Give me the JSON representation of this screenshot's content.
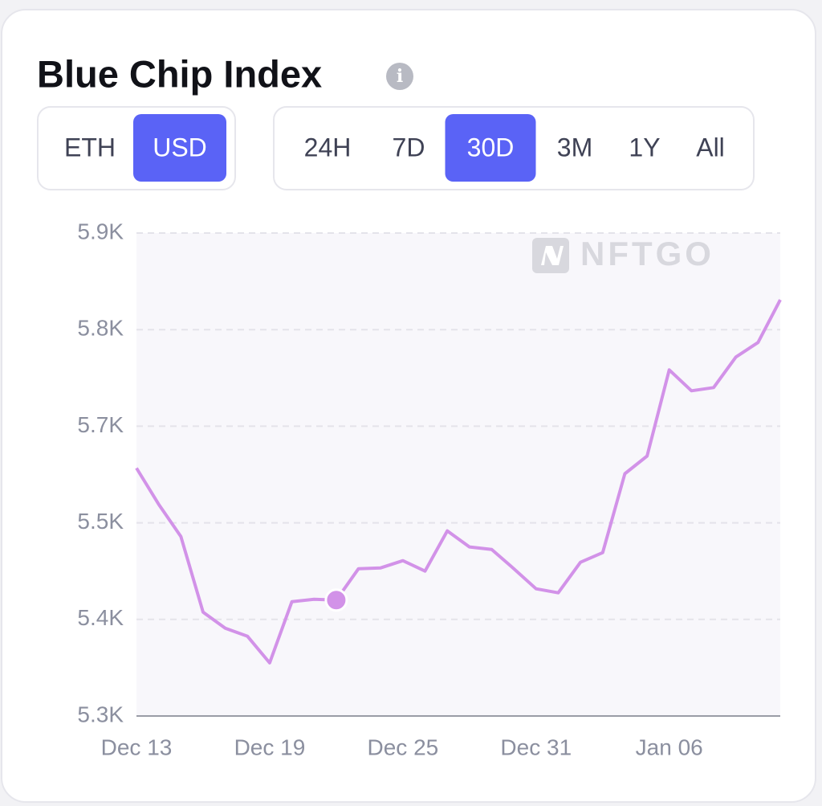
{
  "header": {
    "title": "Blue Chip Index",
    "info_icon": "i"
  },
  "controls": {
    "currency": {
      "options": [
        "ETH",
        "USD"
      ],
      "active": 1
    },
    "range": {
      "options": [
        "24H",
        "7D",
        "30D",
        "3M",
        "1Y",
        "All"
      ],
      "active": 2
    }
  },
  "watermark": "NFTGO",
  "chart_data": {
    "type": "line",
    "categories": [
      "Dec 13",
      null,
      null,
      null,
      null,
      null,
      "Dec 19",
      null,
      null,
      null,
      null,
      null,
      "Dec 25",
      null,
      null,
      null,
      null,
      null,
      "Dec 31",
      null,
      null,
      null,
      null,
      null,
      "Jan 06",
      null,
      null,
      null,
      null,
      null
    ],
    "values": [
      5608,
      5563,
      5523,
      5429,
      5409,
      5399,
      5366,
      5442,
      5445,
      5444,
      5483,
      5484,
      5493,
      5480,
      5530,
      5510,
      5507,
      5483,
      5458,
      5453,
      5491,
      5503,
      5601,
      5623,
      5730,
      5704,
      5708,
      5746,
      5764,
      5817
    ],
    "color": "#d292e8",
    "highlight_index": 9,
    "ylim": [
      5300,
      5900
    ],
    "yticks": [
      {
        "value": 5300,
        "label": "5.3K"
      },
      {
        "value": 5420,
        "label": "5.4K"
      },
      {
        "value": 5540,
        "label": "5.5K"
      },
      {
        "value": 5660,
        "label": "5.7K"
      },
      {
        "value": 5780,
        "label": "5.8K"
      },
      {
        "value": 5900,
        "label": "5.9K"
      }
    ],
    "grid": true
  }
}
